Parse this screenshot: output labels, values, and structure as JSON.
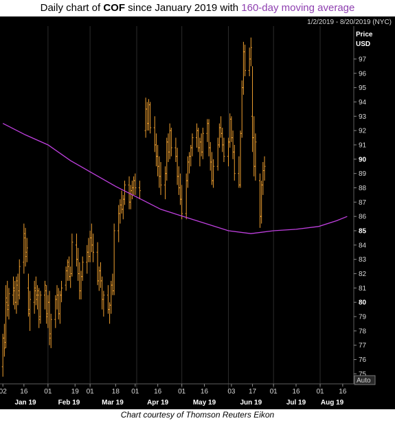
{
  "title": {
    "prefix": "Daily chart of ",
    "ticker": "COF",
    "middle": " since January 2019 with ",
    "ma_label": "160-day moving average"
  },
  "footer": "Chart courtesy of Thomson Reuters Eikon",
  "colors": {
    "background": "#000000",
    "price_bars": "#f0a030",
    "moving_average": "#c040e0",
    "title_ma": "#8e3fb0",
    "axis_text": "#d8d8d8"
  },
  "chart_data": {
    "type": "ohlc",
    "date_range_label": "1/2/2019 - 8/20/2019 (NYC)",
    "y_axis_title": "Price",
    "y_axis_unit": "USD",
    "scale_button": "Auto",
    "ylim": [
      74.3,
      99.3
    ],
    "y_ticks": [
      75,
      76,
      77,
      78,
      79,
      80,
      81,
      82,
      83,
      84,
      85,
      86,
      87,
      88,
      89,
      90,
      91,
      92,
      93,
      94,
      95,
      96,
      97
    ],
    "y_ticks_bold": [
      80,
      85,
      90
    ],
    "x_tick_labels": [
      {
        "label": "02",
        "day": 0
      },
      {
        "label": "16",
        "day": 14
      },
      {
        "label": "01",
        "day": 30
      },
      {
        "label": "19",
        "day": 48
      },
      {
        "label": "01",
        "day": 58
      },
      {
        "label": "18",
        "day": 75
      },
      {
        "label": "01",
        "day": 88
      },
      {
        "label": "16",
        "day": 103
      },
      {
        "label": "01",
        "day": 119
      },
      {
        "label": "16",
        "day": 134
      },
      {
        "label": "03",
        "day": 152
      },
      {
        "label": "17",
        "day": 166
      },
      {
        "label": "01",
        "day": 180
      },
      {
        "label": "16",
        "day": 195
      },
      {
        "label": "01",
        "day": 211
      },
      {
        "label": "16",
        "day": 226
      }
    ],
    "month_labels": [
      {
        "label": "Jan 19",
        "day": 15
      },
      {
        "label": "Feb 19",
        "day": 44
      },
      {
        "label": "Mar 19",
        "day": 73
      },
      {
        "label": "Apr 19",
        "day": 103
      },
      {
        "label": "May 19",
        "day": 134
      },
      {
        "label": "Jun 19",
        "day": 165
      },
      {
        "label": "Jul 19",
        "day": 195
      },
      {
        "label": "Aug 19",
        "day": 219
      }
    ],
    "xlim_days": [
      -1,
      232
    ],
    "month_divider_days": [
      30,
      58,
      89,
      119,
      150,
      180,
      211
    ],
    "ohlc": [
      [
        75.5,
        77.8,
        74.8,
        77.5
      ],
      [
        77.5,
        78.5,
        76.2,
        76.8
      ],
      [
        77.2,
        81.2,
        76.8,
        80.3
      ],
      [
        80.0,
        81.5,
        79.0,
        79.5
      ],
      [
        79.8,
        81.0,
        78.8,
        80.6
      ],
      [
        80.5,
        81.8,
        79.8,
        81.0
      ],
      [
        80.8,
        81.5,
        79.5,
        80.0
      ],
      [
        80.0,
        81.8,
        79.2,
        81.5
      ],
      [
        81.2,
        82.0,
        79.8,
        80.5
      ],
      [
        80.8,
        83.0,
        80.2,
        82.5
      ],
      [
        82.8,
        85.5,
        82.0,
        84.8
      ],
      [
        84.5,
        85.2,
        82.5,
        83.2
      ],
      [
        83.5,
        84.5,
        82.8,
        83.8
      ],
      [
        81.0,
        82.0,
        79.0,
        79.5
      ],
      [
        79.2,
        80.8,
        78.0,
        80.2
      ],
      [
        80.0,
        81.5,
        79.2,
        81.0
      ],
      [
        80.8,
        81.8,
        79.8,
        80.2
      ],
      [
        80.5,
        81.2,
        79.5,
        80.8
      ],
      [
        80.5,
        81.0,
        78.2,
        78.8
      ],
      [
        79.0,
        80.8,
        78.5,
        80.5
      ],
      [
        80.5,
        81.5,
        79.5,
        81.2
      ],
      [
        80.8,
        81.2,
        78.5,
        79.0
      ],
      [
        79.2,
        80.5,
        78.2,
        80.0
      ],
      [
        80.0,
        80.8,
        77.0,
        77.5
      ],
      [
        77.8,
        79.2,
        76.8,
        78.8
      ],
      [
        78.8,
        80.5,
        78.2,
        80.2
      ],
      [
        80.2,
        81.2,
        79.5,
        80.5
      ],
      [
        80.5,
        81.0,
        78.8,
        79.2
      ],
      [
        79.2,
        80.8,
        78.5,
        80.5
      ],
      [
        80.5,
        81.5,
        80.0,
        81.0
      ],
      [
        81.2,
        82.5,
        80.8,
        82.2
      ],
      [
        82.2,
        83.0,
        81.5,
        82.8
      ],
      [
        82.5,
        83.2,
        81.5,
        81.8
      ],
      [
        81.8,
        82.5,
        81.0,
        82.0
      ],
      [
        82.0,
        84.8,
        81.8,
        84.2
      ],
      [
        84.0,
        84.8,
        82.5,
        83.0
      ],
      [
        83.0,
        83.8,
        81.5,
        82.0
      ],
      [
        82.0,
        82.8,
        80.2,
        80.8
      ],
      [
        80.8,
        82.2,
        80.2,
        81.8
      ],
      [
        81.8,
        83.2,
        81.5,
        82.8
      ],
      [
        82.8,
        84.0,
        82.0,
        83.5
      ],
      [
        83.5,
        84.5,
        82.8,
        83.2
      ],
      [
        83.2,
        85.0,
        82.8,
        84.5
      ],
      [
        84.5,
        85.5,
        83.5,
        84.0
      ],
      [
        84.0,
        84.8,
        82.8,
        83.5
      ],
      [
        83.5,
        84.2,
        81.2,
        81.5
      ],
      [
        81.5,
        82.5,
        80.8,
        82.2
      ],
      [
        82.2,
        82.8,
        81.0,
        81.5
      ],
      [
        81.5,
        81.8,
        79.5,
        80.2
      ],
      [
        80.2,
        80.8,
        79.0,
        80.5
      ],
      [
        80.5,
        81.2,
        79.2,
        79.5
      ],
      [
        79.5,
        80.0,
        78.5,
        79.8
      ],
      [
        79.8,
        81.5,
        79.2,
        81.2
      ],
      [
        81.2,
        82.0,
        80.5,
        80.8
      ],
      [
        80.8,
        85.5,
        80.5,
        85.0
      ],
      [
        85.0,
        86.8,
        84.2,
        86.2
      ],
      [
        86.2,
        87.2,
        85.5,
        86.8
      ],
      [
        86.8,
        87.8,
        86.2,
        86.5
      ],
      [
        86.5,
        87.5,
        85.8,
        87.2
      ],
      [
        87.2,
        88.5,
        86.8,
        88.2
      ],
      [
        88.2,
        88.8,
        86.5,
        87.0
      ],
      [
        87.0,
        88.2,
        86.5,
        87.8
      ],
      [
        87.8,
        88.5,
        87.2,
        88.0
      ],
      [
        88.0,
        88.8,
        87.5,
        88.5
      ],
      [
        88.5,
        89.0,
        87.5,
        88.0
      ],
      [
        88.0,
        88.5,
        87.2,
        87.8
      ],
      [
        92.0,
        94.3,
        91.5,
        93.5
      ],
      [
        93.5,
        94.0,
        92.0,
        92.5
      ],
      [
        92.5,
        94.2,
        92.0,
        93.8
      ],
      [
        93.8,
        94.0,
        91.8,
        92.2
      ],
      [
        92.2,
        93.0,
        90.5,
        91.0
      ],
      [
        91.0,
        91.8,
        89.5,
        90.2
      ],
      [
        90.2,
        91.0,
        88.8,
        89.5
      ],
      [
        89.5,
        90.2,
        88.0,
        88.8
      ],
      [
        88.8,
        89.8,
        87.5,
        88.2
      ],
      [
        88.2,
        89.5,
        87.2,
        89.0
      ],
      [
        89.0,
        91.5,
        88.5,
        91.2
      ],
      [
        91.2,
        91.8,
        89.8,
        90.5
      ],
      [
        90.5,
        92.5,
        90.0,
        92.0
      ],
      [
        92.0,
        92.2,
        90.2,
        90.8
      ],
      [
        90.8,
        91.5,
        89.8,
        90.2
      ],
      [
        90.2,
        90.8,
        88.2,
        88.8
      ],
      [
        88.8,
        89.5,
        87.5,
        88.0
      ],
      [
        88.0,
        89.0,
        86.8,
        87.2
      ],
      [
        87.2,
        88.2,
        85.8,
        86.2
      ],
      [
        86.2,
        89.0,
        85.8,
        88.5
      ],
      [
        88.5,
        90.2,
        88.0,
        89.8
      ],
      [
        89.8,
        90.5,
        89.0,
        90.2
      ],
      [
        90.2,
        91.0,
        89.5,
        90.8
      ],
      [
        90.8,
        91.8,
        90.2,
        91.5
      ],
      [
        91.5,
        92.5,
        90.8,
        92.0
      ],
      [
        92.0,
        92.2,
        90.5,
        90.8
      ],
      [
        90.8,
        91.5,
        89.5,
        91.2
      ],
      [
        91.2,
        91.8,
        90.2,
        90.5
      ],
      [
        90.5,
        92.2,
        90.0,
        91.8
      ],
      [
        91.8,
        92.8,
        91.2,
        92.5
      ],
      [
        92.5,
        92.8,
        90.2,
        90.8
      ],
      [
        90.8,
        91.2,
        89.2,
        89.8
      ],
      [
        89.8,
        90.5,
        88.2,
        88.5
      ],
      [
        88.5,
        90.0,
        88.0,
        89.5
      ],
      [
        89.5,
        91.5,
        89.2,
        91.0
      ],
      [
        91.0,
        92.5,
        90.8,
        92.2
      ],
      [
        92.2,
        93.0,
        91.5,
        91.8
      ],
      [
        91.8,
        92.2,
        90.5,
        91.0
      ],
      [
        91.0,
        91.5,
        89.8,
        90.2
      ],
      [
        90.2,
        91.5,
        89.5,
        91.2
      ],
      [
        91.2,
        93.2,
        90.8,
        92.8
      ],
      [
        92.8,
        93.0,
        91.2,
        91.5
      ],
      [
        91.5,
        92.0,
        90.0,
        90.5
      ],
      [
        90.5,
        91.0,
        88.5,
        89.0
      ],
      [
        89.0,
        90.2,
        88.0,
        88.2
      ],
      [
        88.2,
        92.0,
        88.0,
        91.8
      ],
      [
        91.8,
        95.5,
        91.5,
        95.0
      ],
      [
        95.0,
        98.2,
        94.5,
        97.5
      ],
      [
        97.5,
        98.0,
        95.8,
        96.2
      ],
      [
        96.2,
        97.8,
        95.8,
        97.0
      ],
      [
        97.0,
        98.5,
        96.5,
        97.8
      ],
      [
        93.0,
        96.5,
        90.5,
        91.5
      ],
      [
        91.5,
        93.0,
        88.8,
        89.5
      ],
      [
        89.5,
        91.8,
        88.5,
        91.2
      ],
      [
        88.5,
        89.0,
        85.2,
        86.0
      ],
      [
        86.0,
        88.5,
        85.5,
        88.2
      ],
      [
        88.2,
        89.8,
        87.5,
        89.2
      ],
      [
        89.2,
        90.2,
        88.5,
        89.5
      ]
    ],
    "ohlc_days": [
      0,
      1,
      2,
      3,
      4,
      7,
      8,
      9,
      10,
      11,
      14,
      15,
      16,
      17,
      18,
      21,
      22,
      23,
      24,
      25,
      28,
      29,
      30,
      31,
      32,
      35,
      36,
      37,
      38,
      39,
      42,
      43,
      44,
      45,
      46,
      49,
      50,
      51,
      52,
      53,
      56,
      57,
      58,
      59,
      60,
      63,
      64,
      65,
      66,
      67,
      70,
      71,
      72,
      73,
      74,
      77,
      78,
      79,
      80,
      81,
      84,
      85,
      86,
      87,
      88,
      91,
      95,
      96,
      97,
      98,
      101,
      102,
      103,
      104,
      105,
      108,
      109,
      110,
      111,
      112,
      115,
      116,
      117,
      118,
      119,
      122,
      123,
      124,
      125,
      126,
      129,
      130,
      131,
      132,
      133,
      136,
      137,
      138,
      139,
      140,
      143,
      144,
      145,
      146,
      147,
      150,
      151,
      152,
      153,
      154,
      157,
      158,
      159,
      160,
      161,
      164,
      165,
      166,
      167,
      168,
      171,
      172,
      173,
      174
    ],
    "moving_average": [
      {
        "day": 0,
        "value": 92.5
      },
      {
        "day": 15,
        "value": 91.7
      },
      {
        "day": 30,
        "value": 91.0
      },
      {
        "day": 45,
        "value": 89.9
      },
      {
        "day": 60,
        "value": 89.0
      },
      {
        "day": 75,
        "value": 88.1
      },
      {
        "day": 90,
        "value": 87.3
      },
      {
        "day": 105,
        "value": 86.5
      },
      {
        "day": 120,
        "value": 86.0
      },
      {
        "day": 135,
        "value": 85.5
      },
      {
        "day": 150,
        "value": 85.0
      },
      {
        "day": 165,
        "value": 84.8
      },
      {
        "day": 180,
        "value": 85.0
      },
      {
        "day": 195,
        "value": 85.1
      },
      {
        "day": 210,
        "value": 85.3
      },
      {
        "day": 222,
        "value": 85.7
      },
      {
        "day": 229,
        "value": 86.0
      }
    ]
  }
}
